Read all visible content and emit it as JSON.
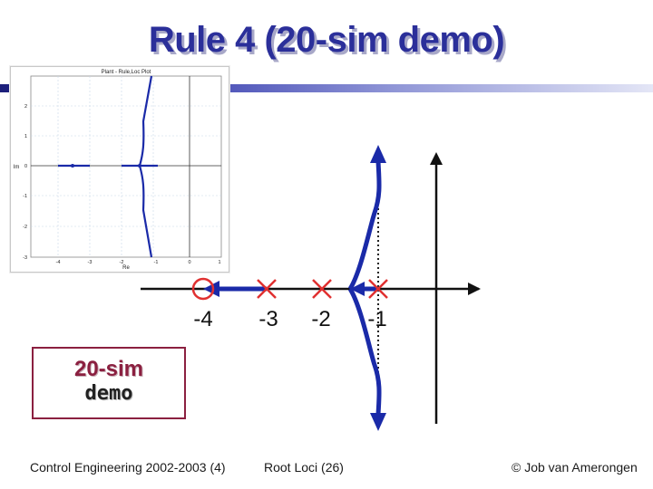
{
  "slide": {
    "title": "Rule 4 (20-sim demo)"
  },
  "inset_plot": {
    "title": "Plant - Rule,Loc Plot",
    "xlabel": "Re",
    "ylabel": "Im",
    "x_ticks": [
      "-4",
      "-3",
      "-2",
      "-1",
      "0",
      "1"
    ],
    "y_ticks": [
      "2",
      "1",
      "0",
      "-1",
      "-2",
      "-3"
    ]
  },
  "diagram": {
    "axis_labels": [
      "-4",
      "-3",
      "-2",
      "-1"
    ],
    "zero_value": -4,
    "pole_values": [
      -3,
      -2,
      -1
    ],
    "colors": {
      "locus": "#1a2aa8",
      "marker": "#e03030",
      "axis": "#111111"
    }
  },
  "demo_box": {
    "line1": "20-sim",
    "line2": "demo"
  },
  "footer": {
    "left": "Control Engineering 2002-2003  (4)",
    "center": "Root Loci  (26)",
    "right": "© Job van Amerongen"
  }
}
